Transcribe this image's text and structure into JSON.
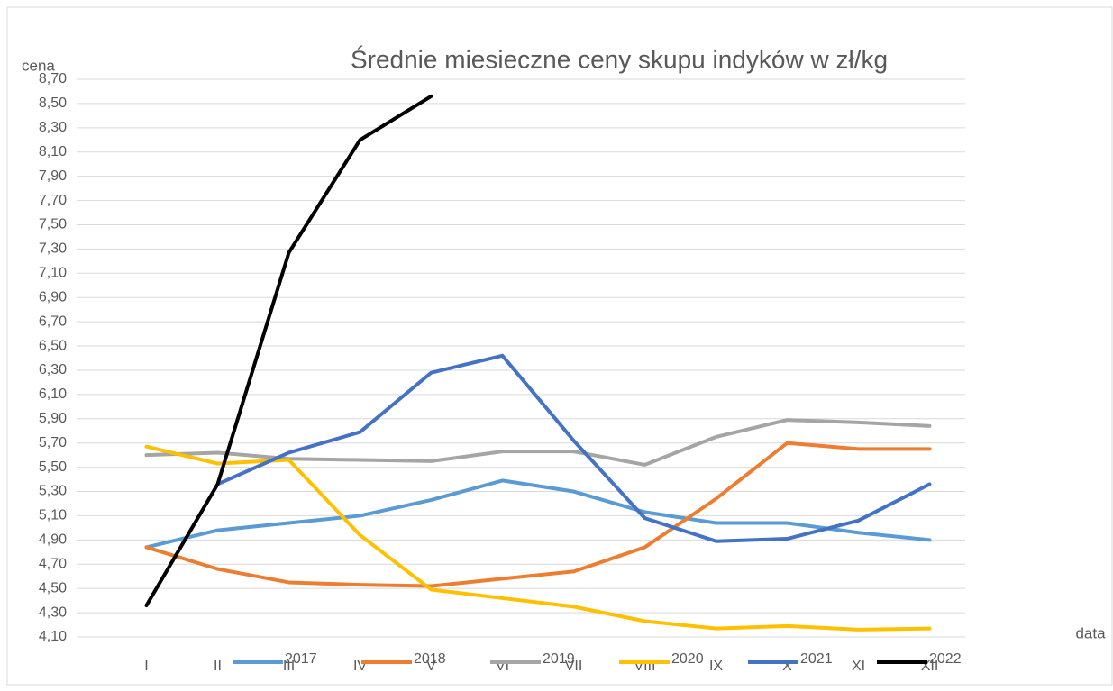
{
  "chart_data": {
    "type": "line",
    "title": "Średnie miesieczne ceny skupu indyków w zł/kg",
    "y_label": "cena",
    "x_label": "data",
    "categories": [
      "I",
      "II",
      "III",
      "IV",
      "V",
      "VI",
      "VII",
      "VIII",
      "IX",
      "X",
      "XI",
      "XII"
    ],
    "series": [
      {
        "name": "2017",
        "color": "#5b9bd5",
        "values": [
          4.84,
          4.98,
          5.04,
          5.1,
          5.23,
          5.39,
          5.3,
          5.13,
          5.04,
          5.04,
          4.96,
          4.9
        ]
      },
      {
        "name": "2018",
        "color": "#ed7d31",
        "values": [
          4.84,
          4.66,
          4.55,
          4.53,
          4.52,
          4.58,
          4.64,
          4.84,
          5.24,
          5.7,
          5.65,
          5.65
        ]
      },
      {
        "name": "2019",
        "color": "#a5a5a5",
        "values": [
          5.6,
          5.62,
          5.57,
          5.56,
          5.55,
          5.63,
          5.63,
          5.52,
          5.75,
          5.89,
          5.87,
          5.84
        ]
      },
      {
        "name": "2020",
        "color": "#ffc000",
        "values": [
          5.67,
          5.53,
          5.56,
          4.94,
          4.49,
          4.42,
          4.35,
          4.23,
          4.17,
          4.19,
          4.16,
          4.17
        ]
      },
      {
        "name": "2021",
        "color": "#4472c4",
        "values": [
          null,
          5.36,
          5.62,
          5.79,
          6.28,
          6.42,
          5.72,
          5.08,
          4.89,
          4.91,
          5.06,
          5.36
        ]
      },
      {
        "name": "2022",
        "color": "#000000",
        "values": [
          4.36,
          5.36,
          7.27,
          8.2,
          8.56,
          null,
          null,
          null,
          null,
          null,
          null,
          null
        ]
      }
    ],
    "ylim": [
      4.1,
      8.7
    ],
    "yticks": [
      {
        "value": 4.1,
        "label": "4,10"
      },
      {
        "value": 4.3,
        "label": "4,30"
      },
      {
        "value": 4.5,
        "label": "4,50"
      },
      {
        "value": 4.7,
        "label": "4,70"
      },
      {
        "value": 4.9,
        "label": "4,90"
      },
      {
        "value": 5.1,
        "label": "5,10"
      },
      {
        "value": 5.3,
        "label": "5,30"
      },
      {
        "value": 5.5,
        "label": "5,50"
      },
      {
        "value": 5.7,
        "label": "5,70"
      },
      {
        "value": 5.9,
        "label": "5,90"
      },
      {
        "value": 6.1,
        "label": "6,10"
      },
      {
        "value": 6.3,
        "label": "6,30"
      },
      {
        "value": 6.5,
        "label": "6,50"
      },
      {
        "value": 6.7,
        "label": "6,70"
      },
      {
        "value": 6.9,
        "label": "6,90"
      },
      {
        "value": 7.1,
        "label": "7,10"
      },
      {
        "value": 7.3,
        "label": "7,30"
      },
      {
        "value": 7.5,
        "label": "7,50"
      },
      {
        "value": 7.7,
        "label": "7,70"
      },
      {
        "value": 7.9,
        "label": "7,90"
      },
      {
        "value": 8.1,
        "label": "8,10"
      },
      {
        "value": 8.3,
        "label": "8,30"
      },
      {
        "value": 8.5,
        "label": "8,50"
      },
      {
        "value": 8.7,
        "label": "8,70"
      }
    ],
    "grid": true,
    "legend": "bottom"
  }
}
